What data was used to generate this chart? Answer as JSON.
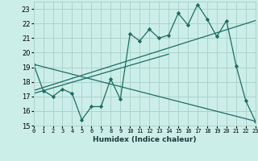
{
  "title": "",
  "xlabel": "Humidex (Indice chaleur)",
  "ylabel": "",
  "bg_color": "#cceee8",
  "grid_color": "#aad4cc",
  "line_color": "#1a6e64",
  "xlim": [
    0,
    23
  ],
  "ylim": [
    15,
    23.5
  ],
  "yticks": [
    15,
    16,
    17,
    18,
    19,
    20,
    21,
    22,
    23
  ],
  "xticks": [
    0,
    1,
    2,
    3,
    4,
    5,
    6,
    7,
    8,
    9,
    10,
    11,
    12,
    13,
    14,
    15,
    16,
    17,
    18,
    19,
    20,
    21,
    22,
    23
  ],
  "line1_x": [
    0,
    1,
    2,
    3,
    4,
    5,
    6,
    7,
    8,
    9,
    10,
    11,
    12,
    13,
    14,
    15,
    16,
    17,
    18,
    19,
    20,
    21,
    22,
    23
  ],
  "line1_y": [
    19.2,
    17.4,
    17.0,
    17.5,
    17.2,
    15.4,
    16.3,
    16.3,
    18.2,
    16.8,
    21.3,
    20.8,
    21.6,
    21.0,
    21.2,
    22.7,
    21.9,
    23.3,
    22.3,
    21.1,
    22.2,
    19.1,
    16.7,
    15.3
  ],
  "line2_x": [
    0,
    23
  ],
  "line2_y": [
    17.4,
    22.2
  ],
  "line3_x": [
    0,
    23
  ],
  "line3_y": [
    19.2,
    15.3
  ],
  "line4_x": [
    0,
    14
  ],
  "line4_y": [
    17.2,
    19.9
  ]
}
